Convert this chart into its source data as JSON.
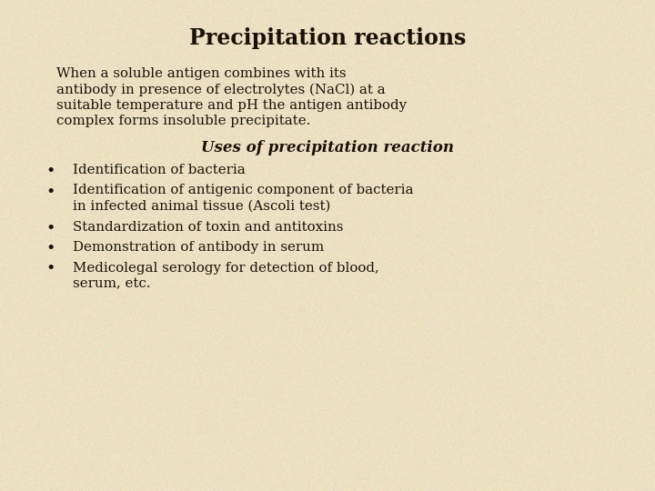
{
  "title": "Precipitation reactions",
  "title_fontsize": 17,
  "bg_color": "#ede0c4",
  "text_color": "#1a1208",
  "body_fontsize": 10.8,
  "paragraph_lines": [
    "When a soluble antigen combines with its",
    "antibody in presence of electrolytes (NaCl) at a",
    "suitable temperature and pH the antigen antibody",
    "complex forms insoluble precipitate."
  ],
  "subheading": "Uses of precipitation reaction",
  "subheading_fontsize": 12,
  "bullet_items": [
    [
      "Identification of bacteria"
    ],
    [
      "Identification of antigenic component of bacteria",
      "in infected animal tissue (Ascoli test)"
    ],
    [
      "Standardization of toxin and antitoxins"
    ],
    [
      "Demonstration of antibody in serum"
    ],
    [
      "Medicolegal serology for detection of blood,",
      "serum, etc."
    ]
  ]
}
